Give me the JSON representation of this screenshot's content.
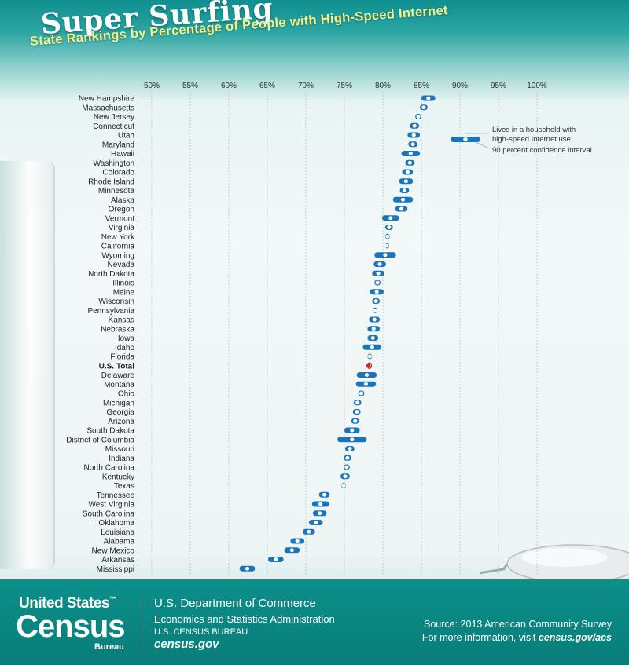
{
  "header": {
    "title": "Super Surfing",
    "subtitle": "State Rankings by Percentage of People with High-Speed Internet"
  },
  "colors": {
    "accent": "#1a75bc",
    "us_total_interval": "#c0272d",
    "us_total_label": "#c0272d",
    "teal": "#0d8f8a"
  },
  "chart_data": {
    "type": "scatter",
    "orientation": "horizontal",
    "xlim": [
      50,
      100
    ],
    "xticks": [
      50,
      55,
      60,
      65,
      70,
      75,
      80,
      85,
      90,
      95,
      100
    ],
    "xtick_labels": [
      "50%",
      "55%",
      "60%",
      "65%",
      "70%",
      "75%",
      "80%",
      "85%",
      "90%",
      "95%",
      "100%"
    ],
    "grid": true,
    "legend": {
      "position": "top-right",
      "point_label": "Lives in a household with high-speed Internet use",
      "interval_label": "90 percent confidence interval"
    },
    "highlight": "U.S. Total",
    "categories": [
      "New Hampshire",
      "Massachusetts",
      "New Jersey",
      "Connecticut",
      "Utah",
      "Maryland",
      "Hawaii",
      "Washington",
      "Colorado",
      "Rhode Island",
      "Minnesota",
      "Alaska",
      "Oregon",
      "Vermont",
      "Virginia",
      "New York",
      "California",
      "Wyoming",
      "Nevada",
      "North Dakota",
      "Illinois",
      "Maine",
      "Wisconsin",
      "Pennsylvania",
      "Kansas",
      "Nebraska",
      "Iowa",
      "Idaho",
      "Florida",
      "U.S. Total",
      "Delaware",
      "Montana",
      "Ohio",
      "Michigan",
      "Georgia",
      "Arizona",
      "South Dakota",
      "District of Columbia",
      "Missouri",
      "Indiana",
      "North Carolina",
      "Kentucky",
      "Texas",
      "Tennessee",
      "West Virginia",
      "South Carolina",
      "Oklahoma",
      "Louisiana",
      "Alabama",
      "New Mexico",
      "Arkansas",
      "Mississippi"
    ],
    "values": [
      85.9,
      85.3,
      84.6,
      84.1,
      84.0,
      83.9,
      83.6,
      83.5,
      83.2,
      83.0,
      82.8,
      82.6,
      82.4,
      81.0,
      80.8,
      80.6,
      80.5,
      80.3,
      79.6,
      79.4,
      79.3,
      79.2,
      79.1,
      79.0,
      78.9,
      78.8,
      78.7,
      78.6,
      78.3,
      78.1,
      77.9,
      77.8,
      77.2,
      76.7,
      76.6,
      76.4,
      76.0,
      76.0,
      75.7,
      75.4,
      75.3,
      75.1,
      74.9,
      72.4,
      71.9,
      71.8,
      71.3,
      70.4,
      68.9,
      68.2,
      66.1,
      62.4
    ],
    "ci_low": [
      85.0,
      84.8,
      84.2,
      83.5,
      83.2,
      83.3,
      82.4,
      82.9,
      82.5,
      82.1,
      82.2,
      81.3,
      81.6,
      79.9,
      80.3,
      80.3,
      80.3,
      78.9,
      78.8,
      78.6,
      78.9,
      78.3,
      78.6,
      78.7,
      78.2,
      78.0,
      78.0,
      77.4,
      78.0,
      78.0,
      76.6,
      76.5,
      76.8,
      76.2,
      76.1,
      75.9,
      75.0,
      74.1,
      75.1,
      74.9,
      74.9,
      74.5,
      74.6,
      71.7,
      70.8,
      70.9,
      70.4,
      69.6,
      68.0,
      67.2,
      65.1,
      61.4
    ],
    "ci_high": [
      86.8,
      85.8,
      85.0,
      84.7,
      84.8,
      84.5,
      84.8,
      84.1,
      83.9,
      83.9,
      83.4,
      83.9,
      83.2,
      82.1,
      81.3,
      80.9,
      80.7,
      81.7,
      80.4,
      80.2,
      79.7,
      80.1,
      79.6,
      79.3,
      79.6,
      79.6,
      79.4,
      79.8,
      78.6,
      78.2,
      79.2,
      79.1,
      77.6,
      77.2,
      77.1,
      76.9,
      77.0,
      77.9,
      76.3,
      75.9,
      75.7,
      75.7,
      75.2,
      73.1,
      73.0,
      72.7,
      72.2,
      71.2,
      69.8,
      69.2,
      67.1,
      63.4
    ]
  },
  "footer": {
    "logo_top": "United States",
    "logo_tm": "™",
    "logo_main": "Census",
    "logo_bureau": "Bureau",
    "dept": "U.S. Department of Commerce",
    "admin": "Economics and Statistics Administration",
    "bureau": "U.S. CENSUS BUREAU",
    "site": "census.gov",
    "source": "Source: 2013 American Community Survey",
    "more_prefix": "For more information, visit",
    "more_link": "census.gov/acs"
  }
}
